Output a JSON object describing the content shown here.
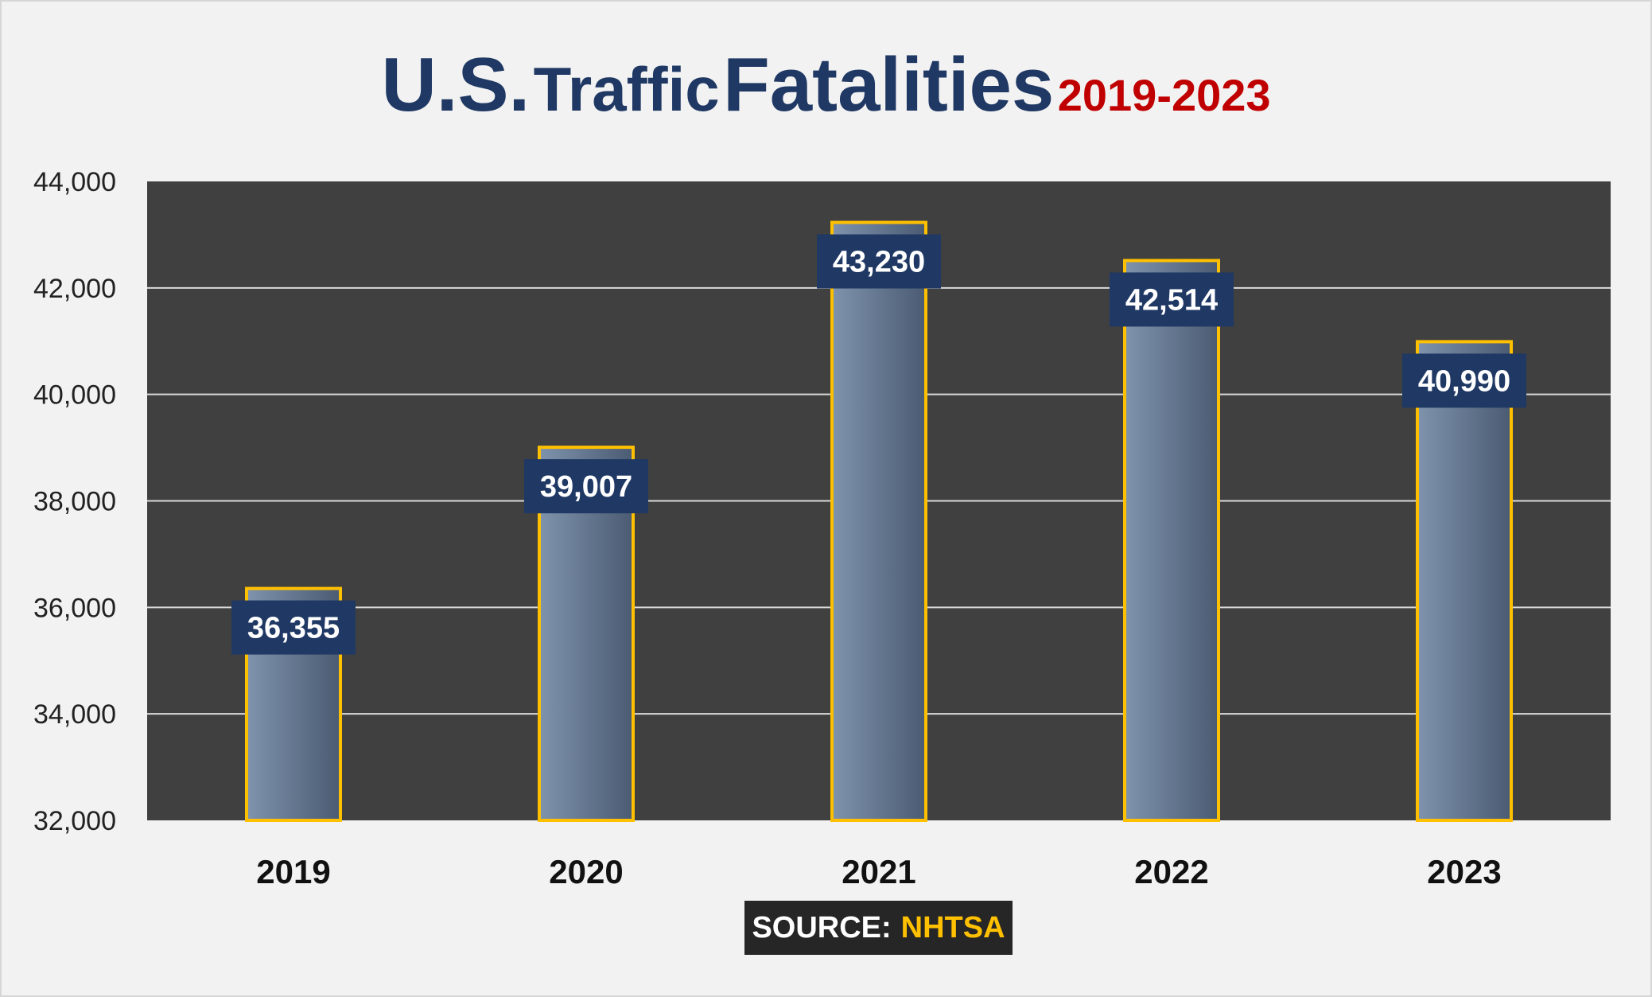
{
  "title": {
    "part1": "U.S.",
    "part2": "Traffic",
    "part3": "Fatalities",
    "years": "2019-2023"
  },
  "source": {
    "label": "SOURCE:",
    "value": "NHTSA"
  },
  "chart_data": {
    "type": "bar",
    "title": "U.S. Traffic Fatalities 2019-2023",
    "xlabel": "",
    "ylabel": "",
    "categories": [
      "2019",
      "2020",
      "2021",
      "2022",
      "2023"
    ],
    "values": [
      36355,
      39007,
      43230,
      42514,
      40990
    ],
    "data_labels": [
      "36,355",
      "39,007",
      "43,230",
      "42,514",
      "40,990"
    ],
    "ylim": [
      32000,
      44000
    ],
    "yticks": [
      32000,
      34000,
      36000,
      38000,
      40000,
      42000,
      44000
    ],
    "ytick_labels": [
      "32,000",
      "34,000",
      "36,000",
      "38,000",
      "40,000",
      "42,000",
      "44,000"
    ],
    "grid": true,
    "legend": "none",
    "colors": {
      "plot_background": "#404040",
      "bar_fill_light": "#7f93ad",
      "bar_fill_dark": "#4a5b72",
      "bar_outline": "#ffc000",
      "data_label_box": "#1f3864",
      "gridline": "#d9d9d9"
    }
  }
}
